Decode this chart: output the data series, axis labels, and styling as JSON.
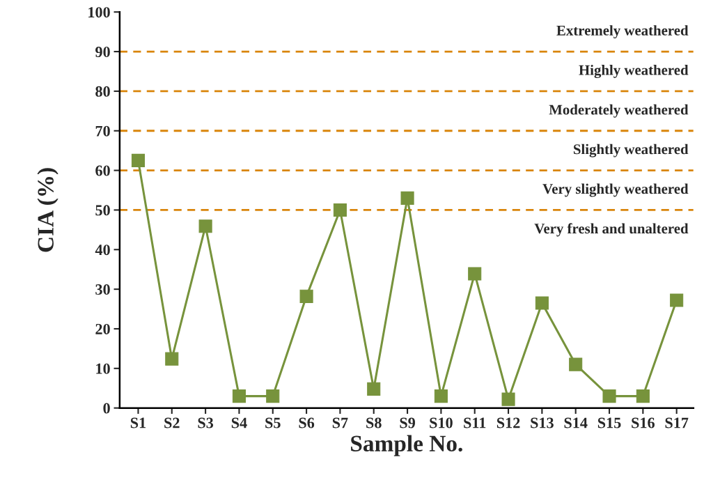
{
  "chart_data": {
    "type": "line",
    "xlabel": "Sample No.",
    "ylabel": "CIA (%)",
    "categories": [
      "S1",
      "S2",
      "S3",
      "S4",
      "S5",
      "S6",
      "S7",
      "S8",
      "S9",
      "S10",
      "S11",
      "S12",
      "S13",
      "S14",
      "S15",
      "S16",
      "S17"
    ],
    "series": [
      {
        "color": "#77933c",
        "values": [
          62.5,
          12.4,
          45.9,
          3,
          3,
          28.2,
          50,
          4.8,
          53,
          3,
          33.9,
          2.2,
          26.5,
          11,
          3,
          3,
          27.2
        ]
      }
    ],
    "marker": "square",
    "line_style": "solid",
    "ylim": [
      0,
      100
    ],
    "yticks": [
      0,
      10,
      20,
      30,
      40,
      50,
      60,
      70,
      80,
      90,
      100
    ],
    "grid": false,
    "legend": false,
    "ref_lines": [
      {
        "axis": "y",
        "value": 50,
        "color": "#d9850b",
        "line_style": "dashed"
      },
      {
        "axis": "y",
        "value": 60,
        "color": "#d9850b",
        "line_style": "dashed"
      },
      {
        "axis": "y",
        "value": 70,
        "color": "#d9850b",
        "line_style": "dashed"
      },
      {
        "axis": "y",
        "value": 80,
        "color": "#d9850b",
        "line_style": "dashed"
      },
      {
        "axis": "y",
        "value": 90,
        "color": "#d9850b",
        "line_style": "dashed"
      }
    ],
    "annotations": [
      "Extremely weathered",
      "Highly weathered",
      "Moderately weathered",
      "Slightly weathered",
      "Very slightly weathered",
      "Very fresh and unaltered"
    ]
  }
}
